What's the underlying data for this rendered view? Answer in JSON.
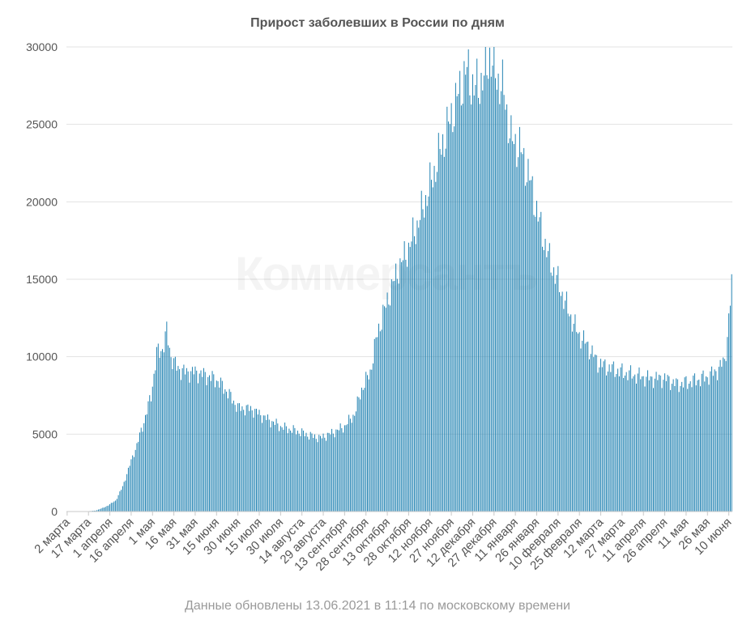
{
  "chart_data": {
    "type": "bar",
    "title": "Прирост заболевших в России по дням",
    "xlabel": "",
    "ylabel": "",
    "ylim": [
      0,
      30000
    ],
    "yticks": [
      "0",
      "5000",
      "10000",
      "15000",
      "20000",
      "25000",
      "30000"
    ],
    "grid": true,
    "bar_color": "#1b7fb0",
    "watermark": "Коммерсантъ",
    "x_start": "2020-03-02",
    "x_tick_labels": [
      "2 марта",
      "17 марта",
      "1 апреля",
      "16 апреля",
      "1 мая",
      "16 мая",
      "31 мая",
      "15 июня",
      "30 июня",
      "15 июля",
      "30 июля",
      "14 августа",
      "29 августа",
      "13 сентября",
      "28 сентября",
      "13 октября",
      "28 октября",
      "12 ноября",
      "27 ноября",
      "12 декабря",
      "27 декабря",
      "11 января",
      "26 января",
      "10 февраля",
      "25 февраля",
      "12 марта",
      "27 марта",
      "11 апреля",
      "26 апреля",
      "11 мая",
      "26 мая",
      "10 июня"
    ],
    "key_points": [
      [
        "2020-03-02",
        0
      ],
      [
        "2020-03-15",
        10
      ],
      [
        "2020-03-22",
        60
      ],
      [
        "2020-03-29",
        300
      ],
      [
        "2020-04-05",
        700
      ],
      [
        "2020-04-10",
        1600
      ],
      [
        "2020-04-15",
        3000
      ],
      [
        "2020-04-20",
        4300
      ],
      [
        "2020-04-25",
        5800
      ],
      [
        "2020-04-30",
        7500
      ],
      [
        "2020-05-04",
        10200
      ],
      [
        "2020-05-08",
        10500
      ],
      [
        "2020-05-11",
        11600
      ],
      [
        "2020-05-14",
        10000
      ],
      [
        "2020-05-18",
        9300
      ],
      [
        "2020-05-24",
        9000
      ],
      [
        "2020-05-31",
        9000
      ],
      [
        "2020-06-07",
        8800
      ],
      [
        "2020-06-15",
        8500
      ],
      [
        "2020-06-22",
        7800
      ],
      [
        "2020-06-30",
        6700
      ],
      [
        "2020-07-10",
        6600
      ],
      [
        "2020-07-20",
        6000
      ],
      [
        "2020-07-31",
        5450
      ],
      [
        "2020-08-10",
        5200
      ],
      [
        "2020-08-20",
        4900
      ],
      [
        "2020-08-27",
        4750
      ],
      [
        "2020-09-05",
        5100
      ],
      [
        "2020-09-13",
        5500
      ],
      [
        "2020-09-20",
        6300
      ],
      [
        "2020-09-25",
        7900
      ],
      [
        "2020-10-01",
        9000
      ],
      [
        "2020-10-06",
        11500
      ],
      [
        "2020-10-13",
        13600
      ],
      [
        "2020-10-20",
        15500
      ],
      [
        "2020-10-28",
        17000
      ],
      [
        "2020-11-05",
        19000
      ],
      [
        "2020-11-12",
        21000
      ],
      [
        "2020-11-20",
        23500
      ],
      [
        "2020-11-27",
        25500
      ],
      [
        "2020-12-04",
        27500
      ],
      [
        "2020-12-08",
        28500
      ],
      [
        "2020-12-13",
        27200
      ],
      [
        "2020-12-20",
        28000
      ],
      [
        "2020-12-24",
        29500
      ],
      [
        "2020-12-27",
        28500
      ],
      [
        "2021-01-03",
        27000
      ],
      [
        "2021-01-08",
        24000
      ],
      [
        "2021-01-14",
        23500
      ],
      [
        "2021-01-21",
        21500
      ],
      [
        "2021-01-27",
        19000
      ],
      [
        "2021-02-03",
        16500
      ],
      [
        "2021-02-10",
        14800
      ],
      [
        "2021-02-17",
        13000
      ],
      [
        "2021-02-24",
        11500
      ],
      [
        "2021-03-03",
        10700
      ],
      [
        "2021-03-10",
        9600
      ],
      [
        "2021-03-17",
        9300
      ],
      [
        "2021-03-27",
        9000
      ],
      [
        "2021-04-05",
        8800
      ],
      [
        "2021-04-15",
        8600
      ],
      [
        "2021-04-26",
        8600
      ],
      [
        "2021-05-05",
        8200
      ],
      [
        "2021-05-15",
        8400
      ],
      [
        "2021-05-26",
        8700
      ],
      [
        "2021-06-03",
        9200
      ],
      [
        "2021-06-07",
        9800
      ],
      [
        "2021-06-09",
        11200
      ],
      [
        "2021-06-11",
        13500
      ],
      [
        "2021-06-12",
        14700
      ]
    ]
  },
  "footer": {
    "note": "Данные обновлены 13.06.2021 в 11:14 по московскому времени"
  }
}
